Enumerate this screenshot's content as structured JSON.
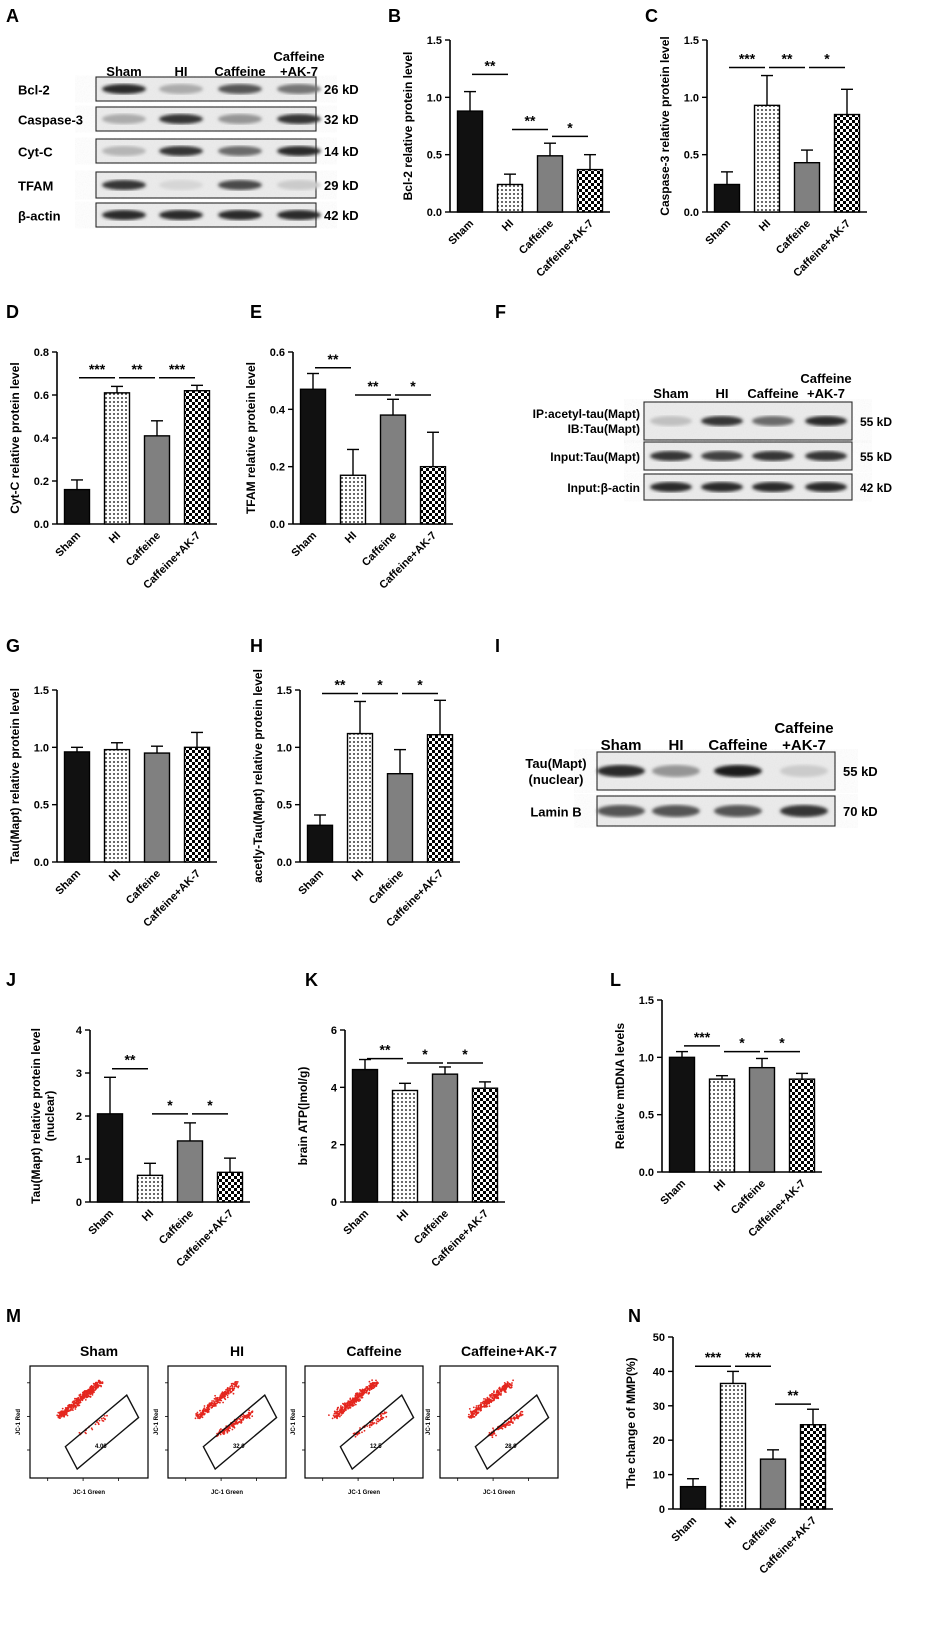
{
  "colors": {
    "dark": "#111111",
    "gray": "#808080",
    "white": "#ffffff",
    "gate": "#111111",
    "dots": "#e4261e"
  },
  "panel_labels": {
    "A": "A",
    "B": "B",
    "C": "C",
    "D": "D",
    "E": "E",
    "F": "F",
    "G": "G",
    "H": "H",
    "I": "I",
    "J": "J",
    "K": "K",
    "L": "L",
    "M": "M",
    "N": "N"
  },
  "blots": {
    "A": {
      "lanes": [
        "Sham",
        "HI",
        "Caffeine",
        "Caffeine"
      ],
      "lane4_line2": "+AK-7",
      "rows": [
        {
          "label": "Bcl-2",
          "size": "26 kD",
          "intensity": [
            0.9,
            0.3,
            0.7,
            0.55
          ]
        },
        {
          "label": "Caspase-3",
          "size": "32 kD",
          "intensity": [
            0.3,
            0.85,
            0.4,
            0.85
          ]
        },
        {
          "label": "Cyt-C",
          "size": "14 kD",
          "intensity": [
            0.25,
            0.85,
            0.6,
            0.9
          ]
        },
        {
          "label": "TFAM",
          "size": "29 kD",
          "intensity": [
            0.85,
            0.1,
            0.75,
            0.15
          ]
        },
        {
          "label": "β-actin",
          "size": "42 kD",
          "intensity": [
            0.9,
            0.9,
            0.9,
            0.9
          ]
        }
      ]
    },
    "F": {
      "lanes": [
        "Sham",
        "HI",
        "Caffeine",
        "Caffeine"
      ],
      "lane4_line2": "+AK-7",
      "rows": [
        {
          "label": "IP:acetyl-tau(Mapt)",
          "label2": "IB:Tau(Mapt)",
          "size": "55 kD",
          "intensity": [
            0.2,
            0.85,
            0.6,
            0.9
          ]
        },
        {
          "label": "Input:Tau(Mapt)",
          "size": "55 kD",
          "intensity": [
            0.85,
            0.8,
            0.85,
            0.85
          ]
        },
        {
          "label": "Input:β-actin",
          "size": "42 kD",
          "intensity": [
            0.9,
            0.9,
            0.9,
            0.9
          ]
        }
      ]
    },
    "I": {
      "lanes": [
        "Sham",
        "HI",
        "Caffeine",
        "Caffeine"
      ],
      "lane4_line2": "+AK-7",
      "rows": [
        {
          "label": "Tau(Mapt)",
          "label2": "(nuclear)",
          "size": "55 kD",
          "intensity": [
            0.9,
            0.4,
            0.95,
            0.15
          ]
        },
        {
          "label": "Lamin B",
          "size": "70 kD",
          "intensity": [
            0.7,
            0.7,
            0.7,
            0.85
          ]
        }
      ]
    }
  },
  "flow": {
    "titles": [
      "Sham",
      "HI",
      "Caffeine",
      "Caffeine+AK-7"
    ],
    "gate_values": [
      "4.06",
      "32.0",
      "12.5",
      "28.9"
    ],
    "xlabel": "JC-1 Green",
    "ylabel": "JC-1 Red"
  },
  "chart_data": [
    {
      "panel": "B",
      "type": "bar",
      "categories": [
        "Sham",
        "HI",
        "Caffeine",
        "Caffeine+AK-7"
      ],
      "values": [
        0.88,
        0.24,
        0.49,
        0.37
      ],
      "errors": [
        0.17,
        0.09,
        0.11,
        0.13
      ],
      "ylabel": "Bcl-2 relative protein level",
      "ylim": [
        0,
        1.5
      ],
      "ticks": [
        "0.0",
        "0.5",
        "1.0",
        "1.5"
      ],
      "sig": [
        {
          "from": 0,
          "to": 1,
          "label": "**",
          "y": 1.2
        },
        {
          "from": 1,
          "to": 2,
          "label": "**",
          "y": 0.72
        },
        {
          "from": 2,
          "to": 3,
          "label": "*",
          "y": 0.66
        }
      ]
    },
    {
      "panel": "C",
      "type": "bar",
      "categories": [
        "Sham",
        "HI",
        "Caffeine",
        "Caffeine+AK-7"
      ],
      "values": [
        0.24,
        0.93,
        0.43,
        0.85
      ],
      "errors": [
        0.11,
        0.26,
        0.11,
        0.22
      ],
      "ylabel": "Caspase-3 relative protein level",
      "ylim": [
        0,
        1.5
      ],
      "ticks": [
        "0.0",
        "0.5",
        "1.0",
        "1.5"
      ],
      "sig": [
        {
          "from": 0,
          "to": 1,
          "label": "***",
          "y": 1.26
        },
        {
          "from": 1,
          "to": 2,
          "label": "**",
          "y": 1.26
        },
        {
          "from": 2,
          "to": 3,
          "label": "*",
          "y": 1.26
        }
      ]
    },
    {
      "panel": "D",
      "type": "bar",
      "categories": [
        "Sham",
        "HI",
        "Caffeine",
        "Caffeine+AK-7"
      ],
      "values": [
        0.16,
        0.61,
        0.41,
        0.62
      ],
      "errors": [
        0.045,
        0.03,
        0.07,
        0.025
      ],
      "ylabel": "Cyt-C relative protein level",
      "ylim": [
        0,
        0.8
      ],
      "ticks": [
        "0.0",
        "0.2",
        "0.4",
        "0.6",
        "0.8"
      ],
      "sig": [
        {
          "from": 0,
          "to": 1,
          "label": "***",
          "y": 0.68
        },
        {
          "from": 1,
          "to": 2,
          "label": "**",
          "y": 0.68
        },
        {
          "from": 2,
          "to": 3,
          "label": "***",
          "y": 0.68
        }
      ]
    },
    {
      "panel": "E",
      "type": "bar",
      "categories": [
        "Sham",
        "HI",
        "Caffeine",
        "Caffeine+AK-7"
      ],
      "values": [
        0.47,
        0.17,
        0.38,
        0.2
      ],
      "errors": [
        0.055,
        0.09,
        0.055,
        0.12
      ],
      "ylabel": "TFAM relative protein level",
      "ylim": [
        0,
        0.6
      ],
      "ticks": [
        "0.0",
        "0.2",
        "0.4",
        "0.6"
      ],
      "sig": [
        {
          "from": 0,
          "to": 1,
          "label": "**",
          "y": 0.545
        },
        {
          "from": 1,
          "to": 2,
          "label": "**",
          "y": 0.45
        },
        {
          "from": 2,
          "to": 3,
          "label": "*",
          "y": 0.45
        }
      ]
    },
    {
      "panel": "G",
      "type": "bar",
      "categories": [
        "Sham",
        "HI",
        "Caffeine",
        "Caffeine+AK-7"
      ],
      "values": [
        0.96,
        0.98,
        0.95,
        1.0
      ],
      "errors": [
        0.04,
        0.06,
        0.06,
        0.13
      ],
      "ylabel": "Tau(Mapt) relative protein level",
      "ylim": [
        0,
        1.5
      ],
      "ticks": [
        "0.0",
        "0.5",
        "1.0",
        "1.5"
      ],
      "sig": []
    },
    {
      "panel": "H",
      "type": "bar",
      "categories": [
        "Sham",
        "HI",
        "Caffeine",
        "Caffeine+AK-7"
      ],
      "values": [
        0.32,
        1.12,
        0.77,
        1.11
      ],
      "errors": [
        0.09,
        0.28,
        0.21,
        0.3
      ],
      "ylabel": "acetly-Tau(Mapt) relative protein level",
      "ylim": [
        0,
        1.5
      ],
      "ticks": [
        "0.0",
        "0.5",
        "1.0",
        "1.5"
      ],
      "sig": [
        {
          "from": 0,
          "to": 1,
          "label": "**",
          "y": 1.47
        },
        {
          "from": 1,
          "to": 2,
          "label": "*",
          "y": 1.47
        },
        {
          "from": 2,
          "to": 3,
          "label": "*",
          "y": 1.47
        }
      ]
    },
    {
      "panel": "J",
      "type": "bar",
      "categories": [
        "Sham",
        "HI",
        "Caffeine",
        "Caffeine+AK-7"
      ],
      "values": [
        2.05,
        0.62,
        1.42,
        0.69
      ],
      "errors": [
        0.85,
        0.28,
        0.42,
        0.33
      ],
      "ylabel": "Tau(Mapt) relative protein level",
      "ylabel2": "(nuclear)",
      "ylim": [
        0,
        4
      ],
      "ticks": [
        "0",
        "1",
        "2",
        "3",
        "4"
      ],
      "sig": [
        {
          "from": 0,
          "to": 1,
          "label": "**",
          "y": 3.1
        },
        {
          "from": 1,
          "to": 2,
          "label": "*",
          "y": 2.05
        },
        {
          "from": 2,
          "to": 3,
          "label": "*",
          "y": 2.05
        }
      ]
    },
    {
      "panel": "K",
      "type": "bar",
      "categories": [
        "Sham",
        "HI",
        "Caffeine",
        "Caffeine+AK-7"
      ],
      "values": [
        4.62,
        3.89,
        4.46,
        3.97
      ],
      "errors": [
        0.35,
        0.25,
        0.25,
        0.22
      ],
      "ylabel": "brain ATP(|mol/g)",
      "ylim": [
        0,
        6
      ],
      "ticks": [
        "0",
        "2",
        "4",
        "6"
      ],
      "sig": [
        {
          "from": 0,
          "to": 1,
          "label": "**",
          "y": 5.0
        },
        {
          "from": 1,
          "to": 2,
          "label": "*",
          "y": 4.85
        },
        {
          "from": 2,
          "to": 3,
          "label": "*",
          "y": 4.85
        }
      ]
    },
    {
      "panel": "L",
      "type": "bar",
      "categories": [
        "Sham",
        "HI",
        "Caffeine",
        "Caffeine+AK-7"
      ],
      "values": [
        1.0,
        0.81,
        0.91,
        0.81
      ],
      "errors": [
        0.05,
        0.03,
        0.08,
        0.05
      ],
      "ylabel": "Relative mtDNA levels",
      "ylim": [
        0,
        1.5
      ],
      "ticks": [
        "0.0",
        "0.5",
        "1.0",
        "1.5"
      ],
      "sig": [
        {
          "from": 0,
          "to": 1,
          "label": "***",
          "y": 1.1
        },
        {
          "from": 1,
          "to": 2,
          "label": "*",
          "y": 1.05
        },
        {
          "from": 2,
          "to": 3,
          "label": "*",
          "y": 1.05
        }
      ]
    },
    {
      "panel": "N",
      "type": "bar",
      "categories": [
        "Sham",
        "HI",
        "Caffeine",
        "Caffeine+AK-7"
      ],
      "values": [
        6.5,
        36.5,
        14.5,
        24.5
      ],
      "errors": [
        2.3,
        3.5,
        2.7,
        4.5
      ],
      "ylabel": "The change of MMP(%)",
      "ylim": [
        0,
        50
      ],
      "ticks": [
        "0",
        "10",
        "20",
        "30",
        "40",
        "50"
      ],
      "sig": [
        {
          "from": 0,
          "to": 1,
          "label": "***",
          "y": 41.5
        },
        {
          "from": 1,
          "to": 2,
          "label": "***",
          "y": 41.5
        },
        {
          "from": 2,
          "to": 3,
          "label": "**",
          "y": 30.5
        }
      ]
    }
  ]
}
